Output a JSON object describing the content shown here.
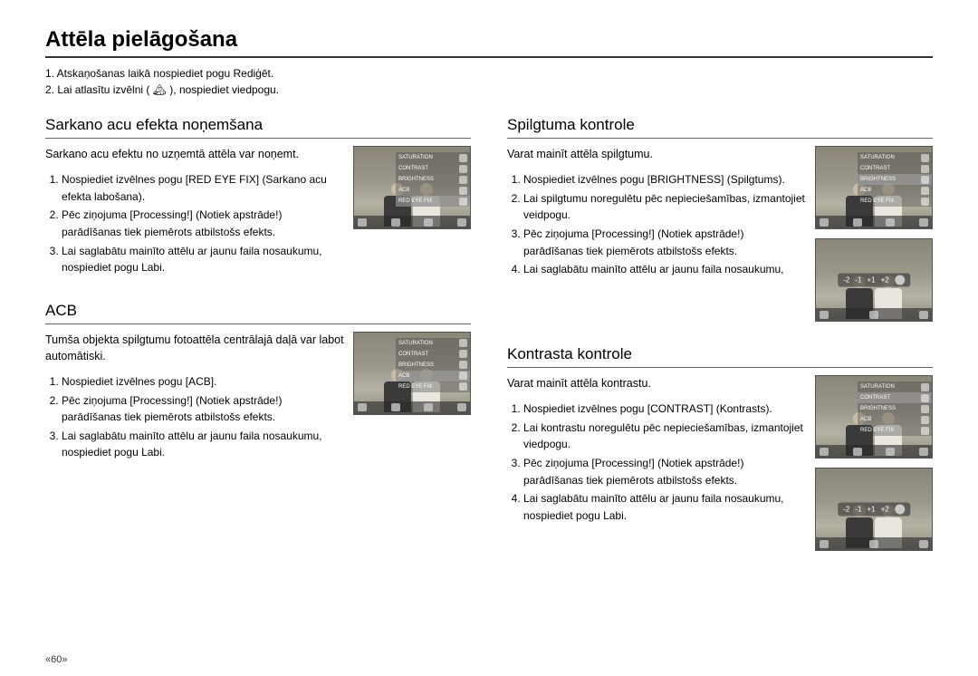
{
  "page_title": "Attēla pielāgošana",
  "intro": {
    "line1": "1. Atskaņošanas laikā nospiediet pogu Rediģēt.",
    "line2": "2. Lai atlasītu izvēlni ( 🏔 ), nospiediet viedpogu."
  },
  "menu_labels": {
    "saturation": "SATURATION",
    "contrast": "CONTRAST",
    "brightness": "BRIGHTNESS",
    "acb": "ACB",
    "red_eye": "RED EYE FIX"
  },
  "slider": {
    "m2": "-2",
    "m1": "-1",
    "p1": "+1",
    "p2": "+2"
  },
  "sections": {
    "redeye": {
      "title": "Sarkano acu efekta noņemšana",
      "desc": "Sarkano acu efektu no uzņemtā attēla var noņemt.",
      "s1": "Nospiediet izvēlnes pogu [RED EYE FIX] (Sarkano acu efekta labošana).",
      "s2": "Pēc ziņojuma [Processing!] (Notiek apstrāde!) parādīšanas tiek piemērots atbilstošs efekts.",
      "s3": "Lai saglabātu mainīto attēlu ar jaunu faila nosaukumu, nospiediet pogu Labi."
    },
    "acb": {
      "title": "ACB",
      "desc": "Tumša objekta spilgtumu fotoattēla centrālajā daļā var labot automātiski.",
      "s1": "Nospiediet izvēlnes pogu [ACB].",
      "s2": "Pēc ziņojuma [Processing!] (Notiek apstrāde!) parādīšanas tiek piemērots atbilstošs efekts.",
      "s3": "Lai saglabātu mainīto attēlu ar jaunu faila nosaukumu, nospiediet pogu Labi."
    },
    "brightness": {
      "title": "Spilgtuma kontrole",
      "desc": "Varat mainīt attēla spilgtumu.",
      "s1": "Nospiediet izvēlnes pogu [BRIGHTNESS] (Spilgtums).",
      "s2": "Lai spilgtumu noregulētu pēc nepieciešamības, izmantojiet veidpogu.",
      "s3": "Pēc ziņojuma [Processing!] (Notiek apstrāde!) parādīšanas tiek piemērots atbilstošs efekts.",
      "s4": "Lai saglabātu mainīto attēlu ar jaunu faila nosaukumu,"
    },
    "contrast": {
      "title": "Kontrasta kontrole",
      "desc": "Varat mainīt attēla kontrastu.",
      "s1": "Nospiediet izvēlnes pogu [CONTRAST] (Kontrasts).",
      "s2": "Lai kontrastu noregulētu pēc nepieciešamības, izmantojiet viedpogu.",
      "s3": "Pēc ziņojuma [Processing!] (Notiek apstrāde!) parādīšanas tiek piemērots atbilstošs efekts.",
      "s4": "Lai saglabātu mainīto attēlu ar jaunu faila nosaukumu, nospiediet pogu Labi."
    }
  },
  "page_number": "«60»",
  "colors": {
    "rule": "#333333",
    "text": "#000000",
    "screen_bg": "#8a8678"
  }
}
